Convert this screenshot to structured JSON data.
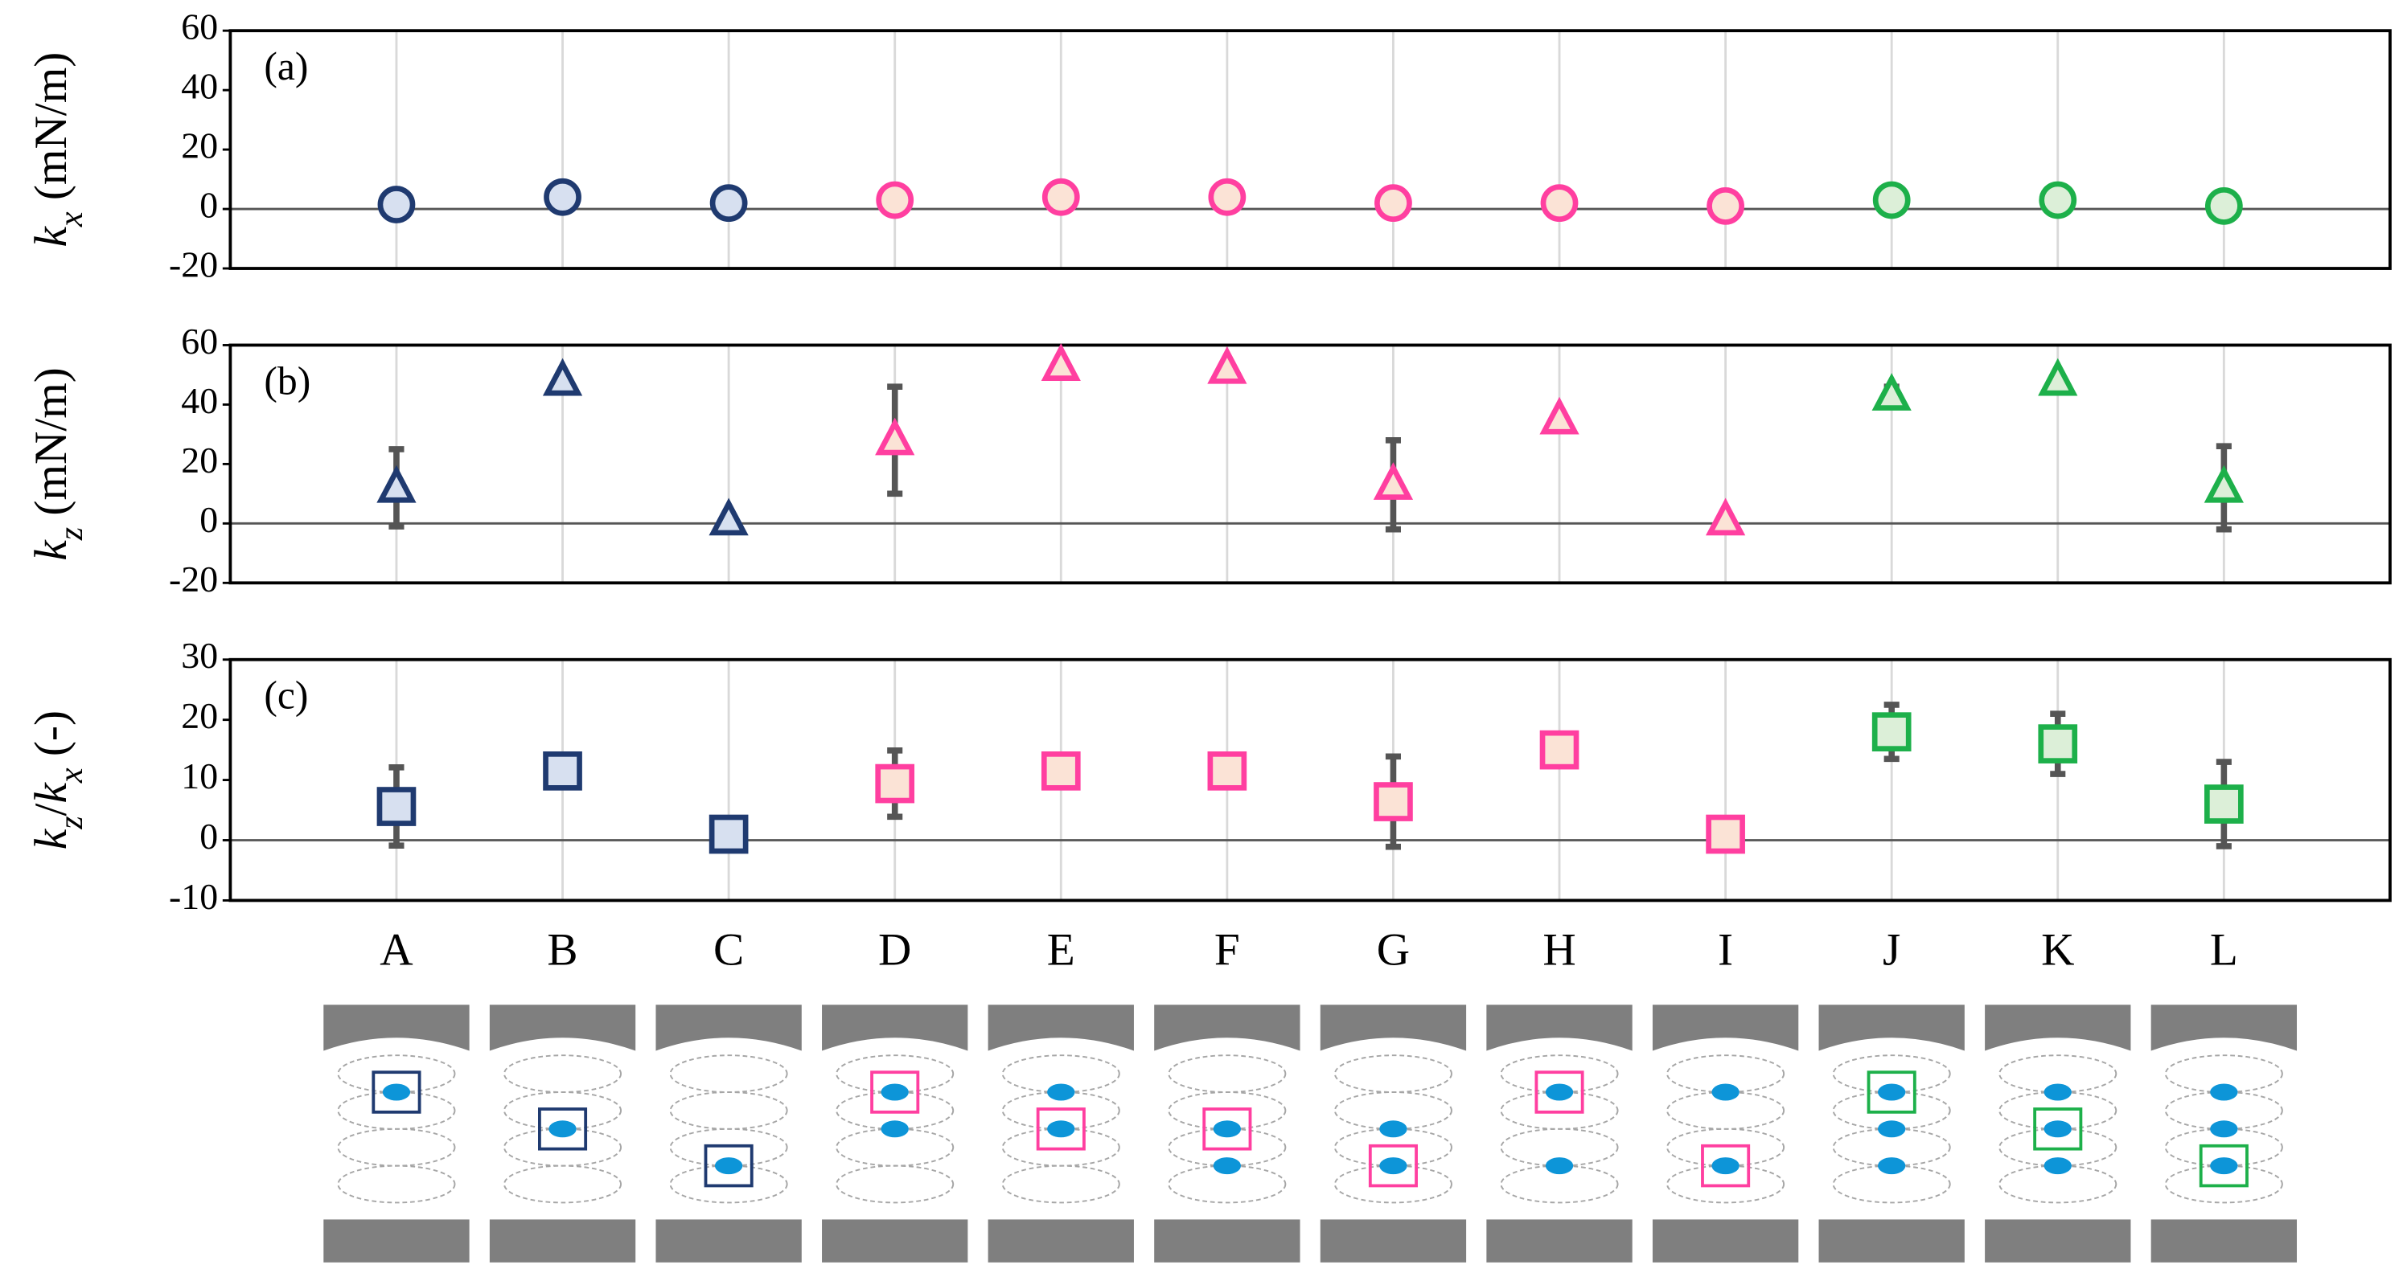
{
  "chart_data": [
    {
      "type": "scatter",
      "title": "(a)",
      "marker": "circle",
      "ylabel_parts": [
        {
          "text": "k",
          "style": "italic"
        },
        {
          "text": "x",
          "style": "sub"
        },
        {
          "text": " (mN/m)",
          "style": "normal"
        }
      ],
      "categories": [
        "A",
        "B",
        "C",
        "D",
        "E",
        "F",
        "G",
        "H",
        "I",
        "J",
        "K",
        "L"
      ],
      "values": [
        1.5,
        4,
        2,
        3,
        4,
        4,
        2,
        2,
        1,
        3,
        3,
        1
      ],
      "colors": [
        "#1f3a70",
        "#1f3a70",
        "#1f3a70",
        "#ff3fa0",
        "#ff3fa0",
        "#ff3fa0",
        "#ff3fa0",
        "#ff3fa0",
        "#ff3fa0",
        "#1db04a",
        "#1db04a",
        "#1db04a"
      ],
      "fills": [
        "#d7e0f0",
        "#d7e0f0",
        "#d7e0f0",
        "#fbe3d6",
        "#fbe3d6",
        "#fbe3d6",
        "#fbe3d6",
        "#fbe3d6",
        "#fbe3d6",
        "#dcefd8",
        "#dcefd8",
        "#dcefd8"
      ],
      "ylim": [
        -20,
        60
      ],
      "yticks": [
        60,
        40,
        20,
        0,
        -20
      ],
      "grid": true
    },
    {
      "type": "scatter",
      "title": "(b)",
      "marker": "triangle",
      "ylabel_parts": [
        {
          "text": "k",
          "style": "italic"
        },
        {
          "text": "z",
          "style": "sub"
        },
        {
          "text": " (mN/m)",
          "style": "normal"
        }
      ],
      "categories": [
        "A",
        "B",
        "C",
        "D",
        "E",
        "F",
        "G",
        "H",
        "I",
        "J",
        "K",
        "L"
      ],
      "values": [
        12,
        48,
        1,
        28,
        53,
        52,
        13,
        35,
        1,
        43,
        48,
        12
      ],
      "errors": [
        13,
        null,
        null,
        18,
        null,
        null,
        15,
        null,
        null,
        3,
        null,
        14
      ],
      "colors": [
        "#1f3a70",
        "#1f3a70",
        "#1f3a70",
        "#ff3fa0",
        "#ff3fa0",
        "#ff3fa0",
        "#ff3fa0",
        "#ff3fa0",
        "#ff3fa0",
        "#1db04a",
        "#1db04a",
        "#1db04a"
      ],
      "fills": [
        "#d7e0f0",
        "#d7e0f0",
        "#d7e0f0",
        "#fbe3d6",
        "#fbe3d6",
        "#fbe3d6",
        "#fbe3d6",
        "#fbe3d6",
        "#fbe3d6",
        "#dcefd8",
        "#dcefd8",
        "#dcefd8"
      ],
      "ylim": [
        -20,
        60
      ],
      "yticks": [
        60,
        40,
        20,
        0,
        -20
      ],
      "grid": true
    },
    {
      "type": "scatter",
      "title": "(c)",
      "marker": "square",
      "ylabel_parts": [
        {
          "text": "k",
          "style": "italic"
        },
        {
          "text": "z",
          "style": "sub"
        },
        {
          "text": "/",
          "style": "normal"
        },
        {
          "text": "k",
          "style": "italic"
        },
        {
          "text": "x",
          "style": "sub"
        },
        {
          "text": " (-)",
          "style": "normal"
        }
      ],
      "categories": [
        "A",
        "B",
        "C",
        "D",
        "E",
        "F",
        "G",
        "H",
        "I",
        "J",
        "K",
        "L"
      ],
      "values": [
        5.6,
        11.5,
        1,
        9.4,
        11.5,
        11.5,
        6.4,
        15,
        1,
        18,
        16,
        6
      ],
      "errors": [
        6.5,
        null,
        null,
        5.5,
        null,
        null,
        7.5,
        null,
        null,
        4.5,
        5,
        7
      ],
      "colors": [
        "#1f3a70",
        "#1f3a70",
        "#1f3a70",
        "#ff3fa0",
        "#ff3fa0",
        "#ff3fa0",
        "#ff3fa0",
        "#ff3fa0",
        "#ff3fa0",
        "#1db04a",
        "#1db04a",
        "#1db04a"
      ],
      "fills": [
        "#d7e0f0",
        "#d7e0f0",
        "#d7e0f0",
        "#fbe3d6",
        "#fbe3d6",
        "#fbe3d6",
        "#fbe3d6",
        "#fbe3d6",
        "#fbe3d6",
        "#dcefd8",
        "#dcefd8",
        "#dcefd8"
      ],
      "ylim": [
        -10,
        30
      ],
      "yticks": [
        30,
        20,
        10,
        0,
        -10
      ],
      "grid": true,
      "show_categories": true
    }
  ]
}
